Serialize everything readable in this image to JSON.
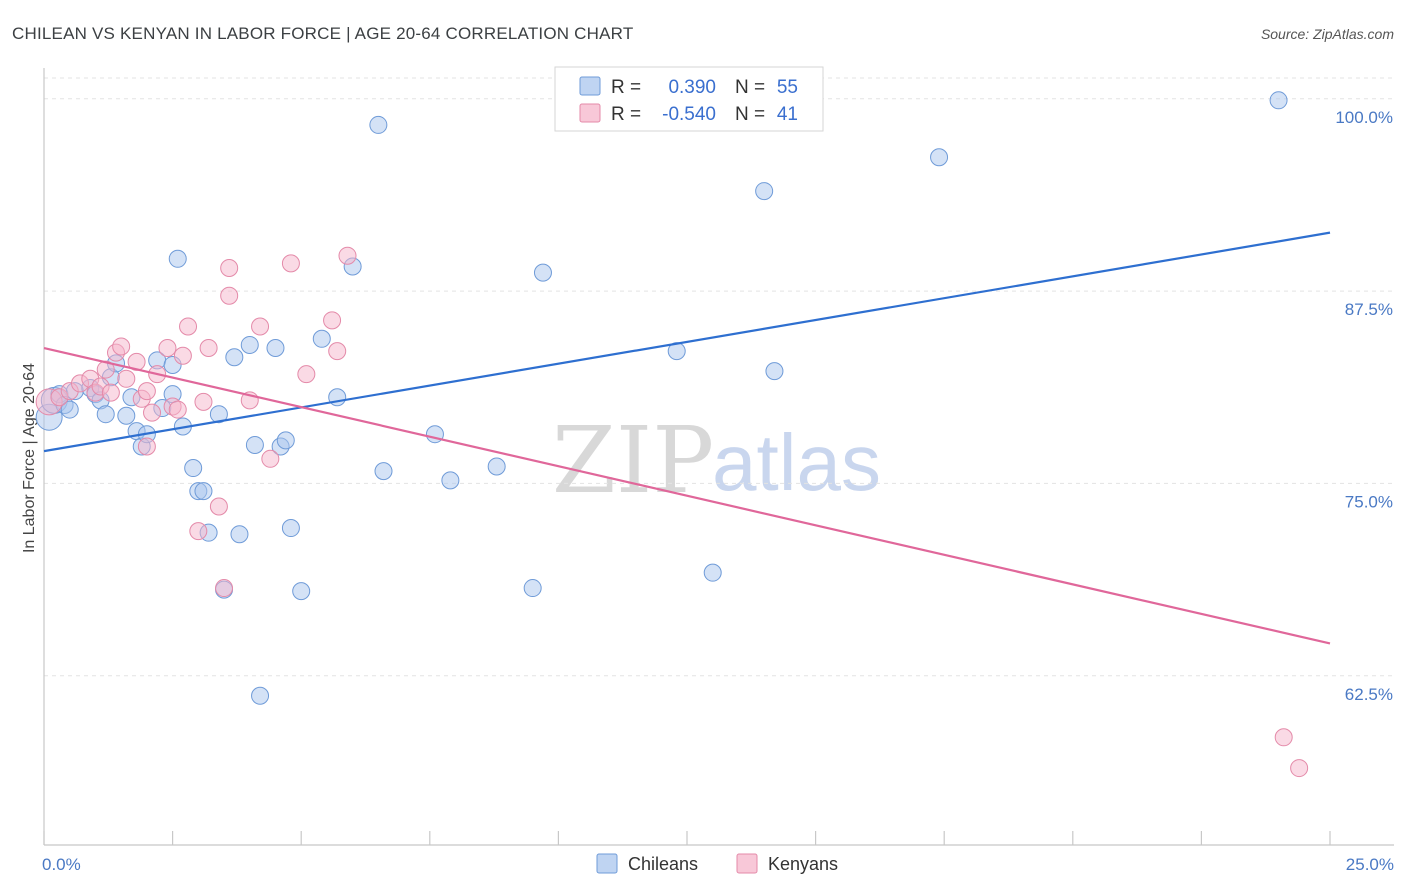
{
  "chart_data": {
    "type": "scatter",
    "title": "CHILEAN VS KENYAN IN LABOR FORCE | AGE 20-64 CORRELATION CHART",
    "source": "Source: ZipAtlas.com",
    "ylabel": "In Labor Force | Age 20-64",
    "xlim": [
      0,
      25
    ],
    "ylim": [
      51.5,
      102
    ],
    "x_ticks": [
      {
        "value": 0,
        "label": "0.0%"
      },
      {
        "value": 25,
        "label": "25.0%"
      }
    ],
    "y_ticks": [
      {
        "value": 100,
        "label": "100.0%"
      },
      {
        "value": 87.5,
        "label": "87.5%"
      },
      {
        "value": 75,
        "label": "75.0%"
      },
      {
        "value": 62.5,
        "label": "62.5%"
      }
    ],
    "watermark": {
      "zip": "ZIP",
      "atlas": "atlas"
    },
    "legend": {
      "rows": [
        {
          "r_label": "R =",
          "r_value": "0.390",
          "n_label": "N =",
          "n_value": "55",
          "color": "#a9c6ee"
        },
        {
          "r_label": "R =",
          "r_value": "-0.540",
          "n_label": "N =",
          "n_value": "41",
          "color": "#f5b6cb"
        }
      ]
    },
    "series": [
      {
        "name": "Chileans",
        "color": "#a9c6ee",
        "stroke": "#6f9bd8",
        "trend_color": "#2e6fd0",
        "trend": [
          [
            0,
            77.1
          ],
          [
            25,
            91.3
          ]
        ],
        "points": [
          [
            0.1,
            79.3
          ],
          [
            0.2,
            80.4
          ],
          [
            0.3,
            80.8
          ],
          [
            0.4,
            80.1
          ],
          [
            0.6,
            81.0
          ],
          [
            0.9,
            81.2
          ],
          [
            1.0,
            80.8
          ],
          [
            1.1,
            80.4
          ],
          [
            1.2,
            79.5
          ],
          [
            1.3,
            81.9
          ],
          [
            1.4,
            82.8
          ],
          [
            1.6,
            79.4
          ],
          [
            1.7,
            80.6
          ],
          [
            1.8,
            78.4
          ],
          [
            1.9,
            77.4
          ],
          [
            2.0,
            78.2
          ],
          [
            2.2,
            83.0
          ],
          [
            2.3,
            79.9
          ],
          [
            2.5,
            80.8
          ],
          [
            2.5,
            82.7
          ],
          [
            2.6,
            89.6
          ],
          [
            2.7,
            78.7
          ],
          [
            2.9,
            76.0
          ],
          [
            3.0,
            74.5
          ],
          [
            3.1,
            74.5
          ],
          [
            3.2,
            71.8
          ],
          [
            3.4,
            79.5
          ],
          [
            3.5,
            68.1
          ],
          [
            3.7,
            83.2
          ],
          [
            3.8,
            71.7
          ],
          [
            4.0,
            84.0
          ],
          [
            4.1,
            77.5
          ],
          [
            4.2,
            61.2
          ],
          [
            4.5,
            83.8
          ],
          [
            4.6,
            77.4
          ],
          [
            4.7,
            77.8
          ],
          [
            4.8,
            72.1
          ],
          [
            5.0,
            68.0
          ],
          [
            5.4,
            84.4
          ],
          [
            5.7,
            80.6
          ],
          [
            6.0,
            89.1
          ],
          [
            6.5,
            98.3
          ],
          [
            6.6,
            75.8
          ],
          [
            7.6,
            78.2
          ],
          [
            7.9,
            75.2
          ],
          [
            8.8,
            76.1
          ],
          [
            9.5,
            68.2
          ],
          [
            9.7,
            88.7
          ],
          [
            12.3,
            83.6
          ],
          [
            13.0,
            69.2
          ],
          [
            14.0,
            94.0
          ],
          [
            14.2,
            82.3
          ],
          [
            17.4,
            96.2
          ],
          [
            24.0,
            99.9
          ],
          [
            0.5,
            79.8
          ]
        ]
      },
      {
        "name": "Kenyans",
        "color": "#f5b6cb",
        "stroke": "#e48aa9",
        "trend_color": "#e0679a",
        "trend": [
          [
            0,
            83.8
          ],
          [
            25,
            64.6
          ]
        ],
        "points": [
          [
            0.1,
            80.3
          ],
          [
            0.3,
            80.6
          ],
          [
            0.5,
            81.0
          ],
          [
            0.7,
            81.5
          ],
          [
            0.9,
            81.8
          ],
          [
            1.0,
            80.9
          ],
          [
            1.1,
            81.3
          ],
          [
            1.3,
            80.9
          ],
          [
            1.4,
            83.5
          ],
          [
            1.5,
            83.9
          ],
          [
            1.6,
            81.8
          ],
          [
            1.8,
            82.9
          ],
          [
            1.9,
            80.5
          ],
          [
            2.0,
            81.0
          ],
          [
            2.1,
            79.6
          ],
          [
            2.2,
            82.1
          ],
          [
            2.4,
            83.8
          ],
          [
            2.5,
            80.0
          ],
          [
            2.6,
            79.8
          ],
          [
            2.7,
            83.3
          ],
          [
            2.8,
            85.2
          ],
          [
            3.0,
            71.9
          ],
          [
            3.1,
            80.3
          ],
          [
            3.2,
            83.8
          ],
          [
            3.4,
            73.5
          ],
          [
            3.5,
            68.2
          ],
          [
            3.6,
            89.0
          ],
          [
            3.6,
            87.2
          ],
          [
            4.0,
            80.4
          ],
          [
            4.2,
            85.2
          ],
          [
            4.4,
            76.6
          ],
          [
            4.8,
            89.3
          ],
          [
            5.1,
            82.1
          ],
          [
            5.6,
            85.6
          ],
          [
            5.7,
            83.6
          ],
          [
            5.9,
            89.8
          ],
          [
            10.3,
            100.0
          ],
          [
            24.1,
            58.5
          ],
          [
            24.4,
            56.5
          ],
          [
            1.2,
            82.4
          ],
          [
            2.0,
            77.4
          ]
        ]
      }
    ]
  }
}
